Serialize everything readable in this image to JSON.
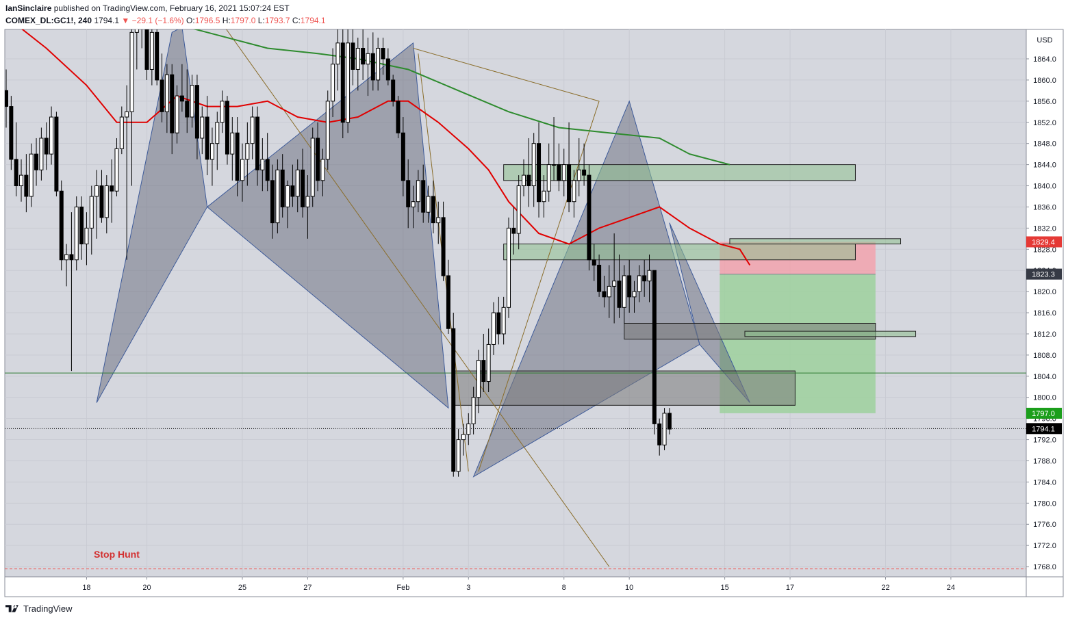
{
  "header": {
    "author": "IanSinclaire",
    "published": "published on TradingView.com, February 16, 2021 15:07:24 EST",
    "symbol": "COMEX_DL:GC1!, 240",
    "last": "1794.1",
    "change": "▼ −29.1 (−1.6%)",
    "o_label": "O:",
    "o_val": "1796.5",
    "h_label": "H:",
    "h_val": "1797.0",
    "l_label": "L:",
    "l_val": "1793.7",
    "c_label": "C:",
    "c_val": "1794.1"
  },
  "footer": {
    "brand": "TradingView"
  },
  "colors": {
    "up_candle": "#ffffff",
    "down_candle": "#000000",
    "ema_fast": "#e00000",
    "ema_slow": "#2e8b2e",
    "harmonic_fill": "#5a6070",
    "zone_green": "#8fc18f",
    "zone_dark": "#7a7a7a",
    "stop_line": "#ef5350",
    "target_fill": "#9ed19e",
    "stop_fill": "#f4a0aa"
  },
  "chart_data": {
    "type": "candlestick",
    "currency": "USD",
    "ylim": [
      1764,
      1870
    ],
    "y_ticks": [
      "1864.0",
      "1860.0",
      "1856.0",
      "1852.0",
      "1848.0",
      "1844.0",
      "1840.0",
      "1836.0",
      "1832.0",
      "1828.0",
      "1824.0",
      "1820.0",
      "1816.0",
      "1812.0",
      "1808.0",
      "1804.0",
      "1800.0",
      "1796.0",
      "1792.0",
      "1788.0",
      "1784.0",
      "1780.0",
      "1776.0",
      "1772.0",
      "1768.0"
    ],
    "x_ticks": [
      {
        "label": "18",
        "bar": 16
      },
      {
        "label": "20",
        "bar": 28
      },
      {
        "label": "25",
        "bar": 47
      },
      {
        "label": "27",
        "bar": 60
      },
      {
        "label": "Feb",
        "bar": 79
      },
      {
        "label": "3",
        "bar": 92
      },
      {
        "label": "8",
        "bar": 111
      },
      {
        "label": "10",
        "bar": 124
      },
      {
        "label": "15",
        "bar": 143
      },
      {
        "label": "17",
        "bar": 156
      },
      {
        "label": "22",
        "bar": 175
      },
      {
        "label": "24",
        "bar": 188
      }
    ],
    "candles": [
      [
        1858,
        1862,
        1851,
        1855
      ],
      [
        1855,
        1857,
        1843,
        1845
      ],
      [
        1845,
        1852,
        1838,
        1840
      ],
      [
        1840,
        1845,
        1837,
        1842
      ],
      [
        1842,
        1846,
        1835,
        1838
      ],
      [
        1838,
        1848,
        1836,
        1846
      ],
      [
        1846,
        1849,
        1840,
        1843
      ],
      [
        1843,
        1851,
        1841,
        1849
      ],
      [
        1849,
        1852,
        1843,
        1846
      ],
      [
        1846,
        1855,
        1844,
        1853
      ],
      [
        1853,
        1854,
        1838,
        1839
      ],
      [
        1839,
        1841,
        1824,
        1826
      ],
      [
        1826,
        1829,
        1821,
        1827
      ],
      [
        1827,
        1835,
        1805,
        1826
      ],
      [
        1826,
        1838,
        1824,
        1836
      ],
      [
        1836,
        1838,
        1826,
        1829
      ],
      [
        1829,
        1835,
        1825,
        1832
      ],
      [
        1832,
        1840,
        1827,
        1838
      ],
      [
        1838,
        1843,
        1830,
        1840
      ],
      [
        1840,
        1843,
        1833,
        1834
      ],
      [
        1834,
        1842,
        1831,
        1840
      ],
      [
        1840,
        1845,
        1833,
        1839
      ],
      [
        1839,
        1849,
        1838,
        1847
      ],
      [
        1847,
        1855,
        1846,
        1853
      ],
      [
        1853,
        1859,
        1826,
        1854
      ],
      [
        1854,
        1870,
        1840,
        1869
      ],
      [
        1869,
        1876,
        1862,
        1872
      ],
      [
        1872,
        1876,
        1866,
        1873
      ],
      [
        1873,
        1875,
        1860,
        1862
      ],
      [
        1862,
        1871,
        1859,
        1869
      ],
      [
        1869,
        1874,
        1859,
        1860
      ],
      [
        1860,
        1865,
        1852,
        1854
      ],
      [
        1854,
        1863,
        1850,
        1861
      ],
      [
        1861,
        1863,
        1846,
        1850
      ],
      [
        1850,
        1859,
        1848,
        1857
      ],
      [
        1857,
        1863,
        1854,
        1856
      ],
      [
        1856,
        1862,
        1850,
        1853
      ],
      [
        1853,
        1861,
        1851,
        1859
      ],
      [
        1859,
        1861,
        1845,
        1849
      ],
      [
        1849,
        1855,
        1846,
        1853
      ],
      [
        1853,
        1857,
        1842,
        1845
      ],
      [
        1845,
        1851,
        1840,
        1848
      ],
      [
        1848,
        1854,
        1843,
        1852
      ],
      [
        1852,
        1858,
        1850,
        1856
      ],
      [
        1856,
        1857,
        1844,
        1846
      ],
      [
        1846,
        1853,
        1841,
        1850
      ],
      [
        1850,
        1853,
        1838,
        1841
      ],
      [
        1841,
        1848,
        1837,
        1845
      ],
      [
        1845,
        1852,
        1840,
        1848
      ],
      [
        1848,
        1855,
        1845,
        1853
      ],
      [
        1853,
        1855,
        1840,
        1843
      ],
      [
        1843,
        1849,
        1839,
        1845
      ],
      [
        1845,
        1850,
        1839,
        1841
      ],
      [
        1841,
        1844,
        1830,
        1833
      ],
      [
        1833,
        1845,
        1831,
        1843
      ],
      [
        1843,
        1846,
        1834,
        1836
      ],
      [
        1836,
        1841,
        1832,
        1840
      ],
      [
        1840,
        1844,
        1836,
        1838
      ],
      [
        1838,
        1845,
        1835,
        1843
      ],
      [
        1843,
        1847,
        1834,
        1836
      ],
      [
        1836,
        1842,
        1830,
        1838
      ],
      [
        1838,
        1851,
        1836,
        1849
      ],
      [
        1849,
        1852,
        1839,
        1841
      ],
      [
        1841,
        1847,
        1838,
        1845
      ],
      [
        1845,
        1858,
        1843,
        1856
      ],
      [
        1856,
        1866,
        1853,
        1863
      ],
      [
        1863,
        1870,
        1858,
        1867
      ],
      [
        1867,
        1870,
        1849,
        1852
      ],
      [
        1852,
        1870,
        1850,
        1867
      ],
      [
        1867,
        1872,
        1859,
        1862
      ],
      [
        1862,
        1868,
        1858,
        1866
      ],
      [
        1866,
        1870,
        1860,
        1863
      ],
      [
        1863,
        1868,
        1857,
        1865
      ],
      [
        1865,
        1869,
        1858,
        1860
      ],
      [
        1860,
        1868,
        1858,
        1866
      ],
      [
        1866,
        1868,
        1861,
        1864
      ],
      [
        1864,
        1866,
        1859,
        1860
      ],
      [
        1860,
        1861,
        1855,
        1856
      ],
      [
        1856,
        1857,
        1849,
        1850
      ],
      [
        1850,
        1853,
        1838,
        1841
      ],
      [
        1841,
        1845,
        1832,
        1836
      ],
      [
        1836,
        1840,
        1832,
        1837
      ],
      [
        1837,
        1843,
        1835,
        1841
      ],
      [
        1841,
        1844,
        1833,
        1835
      ],
      [
        1835,
        1840,
        1833,
        1838
      ],
      [
        1838,
        1841,
        1831,
        1833
      ],
      [
        1833,
        1837,
        1829,
        1834
      ],
      [
        1834,
        1837,
        1822,
        1823
      ],
      [
        1823,
        1826,
        1812,
        1813
      ],
      [
        1813,
        1816,
        1785,
        1786
      ],
      [
        1786,
        1794,
        1785,
        1792
      ],
      [
        1792,
        1795,
        1789,
        1793
      ],
      [
        1793,
        1797,
        1791,
        1795
      ],
      [
        1795,
        1802,
        1793,
        1800
      ],
      [
        1800,
        1809,
        1797,
        1807
      ],
      [
        1807,
        1812,
        1801,
        1803
      ],
      [
        1803,
        1813,
        1801,
        1810
      ],
      [
        1810,
        1818,
        1808,
        1816
      ],
      [
        1816,
        1819,
        1810,
        1812
      ],
      [
        1812,
        1819,
        1810,
        1817
      ],
      [
        1817,
        1834,
        1815,
        1832
      ],
      [
        1832,
        1836,
        1827,
        1831
      ],
      [
        1831,
        1842,
        1828,
        1840
      ],
      [
        1840,
        1845,
        1838,
        1842
      ],
      [
        1842,
        1849,
        1836,
        1840
      ],
      [
        1840,
        1850,
        1836,
        1848
      ],
      [
        1848,
        1852,
        1834,
        1837
      ],
      [
        1837,
        1842,
        1834,
        1839
      ],
      [
        1839,
        1848,
        1837,
        1844
      ],
      [
        1844,
        1853,
        1841,
        1844
      ],
      [
        1844,
        1848,
        1839,
        1841
      ],
      [
        1841,
        1847,
        1838,
        1844
      ],
      [
        1844,
        1852,
        1835,
        1837
      ],
      [
        1837,
        1843,
        1834,
        1841
      ],
      [
        1841,
        1849,
        1838,
        1843
      ],
      [
        1843,
        1848,
        1840,
        1842
      ],
      [
        1842,
        1844,
        1824,
        1826
      ],
      [
        1826,
        1829,
        1822,
        1825
      ],
      [
        1825,
        1827,
        1819,
        1820
      ],
      [
        1820,
        1823,
        1817,
        1819
      ],
      [
        1819,
        1825,
        1815,
        1821
      ],
      [
        1821,
        1831,
        1814,
        1822
      ],
      [
        1822,
        1827,
        1815,
        1817
      ],
      [
        1817,
        1825,
        1814,
        1823
      ],
      [
        1823,
        1826,
        1816,
        1819
      ],
      [
        1819,
        1822,
        1816,
        1820
      ],
      [
        1820,
        1825,
        1818,
        1823
      ],
      [
        1823,
        1826,
        1819,
        1822
      ],
      [
        1822,
        1827,
        1818,
        1824
      ],
      [
        1824,
        1824,
        1793,
        1795
      ],
      [
        1795,
        1796,
        1789,
        1791
      ],
      [
        1791,
        1798,
        1790,
        1797
      ],
      [
        1797,
        1798,
        1793,
        1794
      ]
    ],
    "ema_fast": [
      [
        0,
        1872
      ],
      [
        8,
        1866
      ],
      [
        16,
        1859
      ],
      [
        22,
        1852
      ],
      [
        28,
        1852
      ],
      [
        34,
        1857
      ],
      [
        40,
        1855
      ],
      [
        46,
        1855
      ],
      [
        52,
        1856
      ],
      [
        58,
        1853
      ],
      [
        64,
        1852
      ],
      [
        70,
        1853
      ],
      [
        76,
        1856
      ],
      [
        80,
        1856
      ],
      [
        86,
        1852
      ],
      [
        92,
        1847
      ],
      [
        96,
        1843
      ],
      [
        100,
        1837
      ],
      [
        106,
        1831
      ],
      [
        112,
        1829
      ],
      [
        118,
        1832
      ],
      [
        124,
        1834
      ],
      [
        130,
        1836
      ],
      [
        136,
        1832
      ],
      [
        142,
        1829
      ],
      [
        146,
        1828
      ],
      [
        148,
        1825
      ]
    ],
    "ema_slow": [
      [
        12,
        1873
      ],
      [
        28,
        1872
      ],
      [
        40,
        1869
      ],
      [
        52,
        1866
      ],
      [
        62,
        1865
      ],
      [
        70,
        1864
      ],
      [
        80,
        1862
      ],
      [
        90,
        1858
      ],
      [
        100,
        1854
      ],
      [
        110,
        1851
      ],
      [
        120,
        1850
      ],
      [
        130,
        1849
      ],
      [
        136,
        1846
      ],
      [
        144,
        1844
      ]
    ],
    "harmonics": [
      [
        [
          18,
          1799
        ],
        [
          33,
          1869
        ],
        [
          35,
          1870
        ],
        [
          40,
          1836
        ]
      ],
      [
        [
          40,
          1836
        ],
        [
          81,
          1867
        ],
        [
          88,
          1798
        ],
        [
          40,
          1836
        ]
      ],
      [
        [
          93,
          1785
        ],
        [
          124,
          1856
        ],
        [
          138,
          1810
        ],
        [
          93,
          1785
        ]
      ],
      [
        [
          132,
          1833
        ],
        [
          138,
          1810
        ],
        [
          148,
          1799
        ],
        [
          132,
          1833
        ]
      ]
    ],
    "trend_lines": [
      [
        [
          42,
          1872
        ],
        [
          120,
          1768
        ]
      ],
      [
        [
          81,
          1866
        ],
        [
          118,
          1856
        ]
      ],
      [
        [
          82,
          1865
        ],
        [
          92,
          1786
        ]
      ],
      [
        [
          94,
          1786
        ],
        [
          118,
          1856
        ]
      ]
    ],
    "zones": [
      {
        "kind": "green",
        "x": [
          99,
          169
        ],
        "y": [
          1844,
          1841
        ]
      },
      {
        "kind": "green",
        "x": [
          99,
          169
        ],
        "y": [
          1829,
          1826
        ]
      },
      {
        "kind": "dark",
        "x": [
          89,
          157
        ],
        "y": [
          1805,
          1798.5
        ]
      },
      {
        "kind": "dark",
        "x": [
          123,
          173
        ],
        "y": [
          1814,
          1811
        ]
      },
      {
        "kind": "green",
        "x": [
          147,
          181
        ],
        "y": [
          1812.5,
          1811.5
        ]
      },
      {
        "kind": "green",
        "x": [
          144,
          178
        ],
        "y": [
          1830,
          1829
        ]
      }
    ],
    "position": {
      "x": [
        142,
        173
      ],
      "entry": 1823.3,
      "stop": 1829.4,
      "target": 1797.0
    },
    "horizontal_lines": [
      {
        "price": 1804.6,
        "style": "solid",
        "color": "#2e7d32"
      },
      {
        "price": 1794.1,
        "style": "dotted",
        "color": "#000000"
      },
      {
        "price": 1767.6,
        "style": "dashed",
        "color": "#ef5350"
      }
    ],
    "annotations": [
      {
        "text": "Stop Hunt",
        "bar": 22,
        "price": 1769.7
      }
    ],
    "price_labels": [
      {
        "text": "1829.4",
        "price": 1829.4,
        "bg": "#e53935",
        "fg": "#ffffff"
      },
      {
        "text": "1823.3",
        "price": 1823.3,
        "bg": "#363a45",
        "fg": "#ffffff"
      },
      {
        "text": "1797.0",
        "price": 1797.0,
        "bg": "#1b9e1b",
        "fg": "#ffffff"
      },
      {
        "text": "1794.1",
        "price": 1794.1,
        "bg": "#000000",
        "fg": "#ffffff"
      }
    ]
  }
}
